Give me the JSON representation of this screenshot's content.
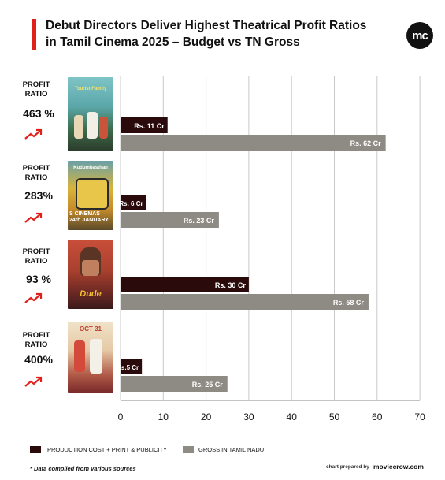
{
  "title_line1": "Debut Directors Deliver Highest Theatrical Profit Ratios",
  "title_line2": "in Tamil Cinema 2025 – Budget vs TN Gross",
  "logo_text": "mc",
  "profit_label_line1": "PROFIT",
  "profit_label_line2": "RATIO",
  "ratios": [
    "463 %",
    "283%",
    "93 %",
    "400%"
  ],
  "poster_texts": {
    "p1": "Tourist Family",
    "p2_top": "Kudumbasthan",
    "p2_bottom_1": "S CINEMAS",
    "p2_bottom_2": "24th JANUARY",
    "p3": "Dude",
    "p4_top": "OCT 31"
  },
  "colors": {
    "accent_red": "#e0201b",
    "production": "#2a0a0a",
    "gross": "#8e8a84",
    "trend": "#e0201b"
  },
  "icons": [
    "trend-up-icon",
    "mc-logo"
  ],
  "legend": {
    "production": "PRODUCTION COST + PRINT & PUBLICITY",
    "gross": "GROSS IN TAMIL NADU"
  },
  "footnote": "* Data compiled from various sources",
  "prepared_by": "chart prepared by",
  "site": "moviecrow.com",
  "chart_data": {
    "type": "bar",
    "orientation": "horizontal",
    "title": "Debut Directors Deliver Highest Theatrical Profit Ratios in Tamil Cinema 2025 – Budget vs TN Gross",
    "xlim": [
      0,
      70
    ],
    "xticks": [
      0,
      10,
      20,
      30,
      40,
      50,
      60,
      70
    ],
    "grid": true,
    "legend_position": "bottom",
    "series": [
      {
        "name": "PRODUCTION COST + PRINT & PUBLICITY",
        "values": [
          11,
          6,
          30,
          5
        ],
        "labels": [
          "Rs. 11 Cr",
          "Rs. 6 Cr",
          "Rs. 30 Cr",
          "Rs.5 Cr"
        ]
      },
      {
        "name": "GROSS IN TAMIL NADU",
        "values": [
          62,
          23,
          58,
          25
        ],
        "labels": [
          "Rs. 62 Cr",
          "Rs. 23 Cr",
          "Rs. 58 Cr",
          "Rs. 25 Cr"
        ]
      }
    ],
    "profit_ratios": [
      "463 %",
      "283%",
      "93 %",
      "400%"
    ]
  }
}
